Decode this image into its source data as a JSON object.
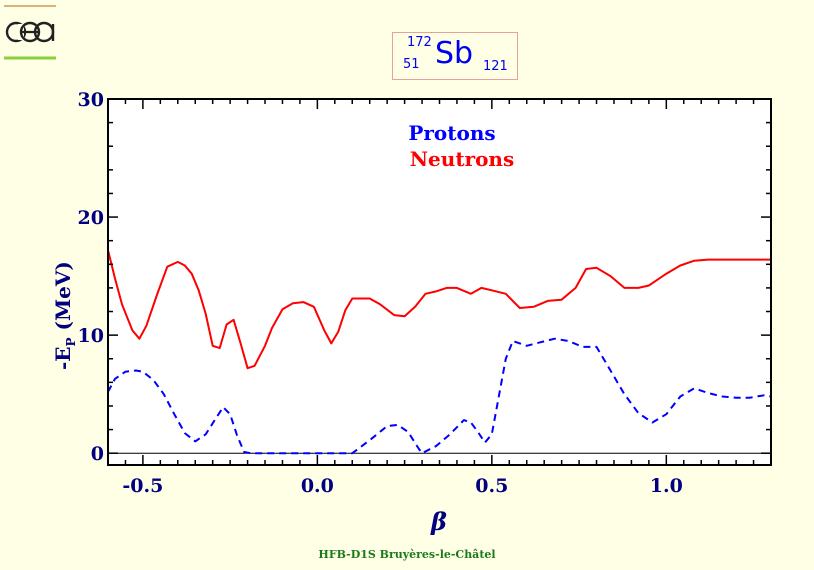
{
  "logo": {
    "text": "cea"
  },
  "nucleus": {
    "mass_number": "172",
    "atomic_number": "51",
    "symbol": "Sb",
    "neutron_number": "121"
  },
  "footer": {
    "text": "HFB-D1S Bruyères-le-Châtel"
  },
  "chart_data": {
    "type": "line",
    "title": "",
    "xlabel": "β",
    "ylabel": "-E",
    "ylabel_sub": "P",
    "ylabel_unit": " (MeV)",
    "xlim": [
      -0.6,
      1.3
    ],
    "ylim": [
      -1,
      30
    ],
    "x_ticks": [
      -0.5,
      0.0,
      0.5,
      1.0
    ],
    "x_tick_labels": [
      "-0.5",
      "0.0",
      "0.5",
      "1.0"
    ],
    "y_ticks": [
      0,
      10,
      20,
      30
    ],
    "y_tick_labels": [
      "0",
      "10",
      "20",
      "30"
    ],
    "legend": [
      "Protons",
      "Neutrons"
    ],
    "series": [
      {
        "name": "Protons",
        "color": "#0000ff",
        "dash": "dashed",
        "x": [
          -0.6,
          -0.58,
          -0.55,
          -0.52,
          -0.5,
          -0.47,
          -0.44,
          -0.41,
          -0.38,
          -0.35,
          -0.32,
          -0.29,
          -0.27,
          -0.25,
          -0.23,
          -0.21,
          -0.19,
          -0.15,
          -0.1,
          -0.05,
          0.0,
          0.05,
          0.1,
          0.15,
          0.2,
          0.23,
          0.26,
          0.29,
          0.3,
          0.34,
          0.38,
          0.42,
          0.44,
          0.46,
          0.48,
          0.5,
          0.52,
          0.54,
          0.56,
          0.6,
          0.64,
          0.68,
          0.72,
          0.76,
          0.8,
          0.84,
          0.88,
          0.92,
          0.96,
          1.0,
          1.04,
          1.08,
          1.12,
          1.16,
          1.2,
          1.24,
          1.28,
          1.3
        ],
        "y": [
          5.2,
          6.3,
          6.9,
          7.0,
          6.9,
          6.2,
          5.0,
          3.3,
          1.7,
          1.0,
          1.6,
          3.0,
          3.9,
          3.3,
          1.5,
          0.1,
          0.0,
          0.0,
          0.0,
          0.0,
          0.0,
          0.0,
          0.0,
          1.1,
          2.3,
          2.4,
          1.8,
          0.4,
          0.0,
          0.6,
          1.6,
          2.8,
          2.6,
          1.8,
          0.9,
          1.6,
          4.8,
          8.0,
          9.5,
          9.1,
          9.4,
          9.7,
          9.5,
          9.0,
          9.0,
          7.0,
          5.0,
          3.4,
          2.6,
          3.3,
          4.8,
          5.5,
          5.1,
          4.8,
          4.7,
          4.7,
          4.9,
          4.8
        ]
      },
      {
        "name": "Neutrons",
        "color": "#ff0000",
        "dash": "solid",
        "x": [
          -0.6,
          -0.58,
          -0.56,
          -0.53,
          -0.51,
          -0.49,
          -0.46,
          -0.43,
          -0.4,
          -0.38,
          -0.36,
          -0.34,
          -0.32,
          -0.3,
          -0.28,
          -0.26,
          -0.24,
          -0.22,
          -0.2,
          -0.18,
          -0.15,
          -0.13,
          -0.1,
          -0.07,
          -0.04,
          -0.01,
          0.02,
          0.04,
          0.06,
          0.08,
          0.1,
          0.12,
          0.15,
          0.18,
          0.22,
          0.25,
          0.28,
          0.31,
          0.34,
          0.37,
          0.4,
          0.44,
          0.47,
          0.5,
          0.54,
          0.58,
          0.62,
          0.66,
          0.7,
          0.74,
          0.77,
          0.8,
          0.84,
          0.88,
          0.92,
          0.95,
          0.97,
          1.0,
          1.04,
          1.08,
          1.12,
          1.16,
          1.2,
          1.24,
          1.28,
          1.3
        ],
        "y": [
          17.2,
          14.8,
          12.6,
          10.4,
          9.7,
          10.8,
          13.4,
          15.8,
          16.2,
          15.9,
          15.2,
          13.8,
          11.8,
          9.1,
          8.9,
          10.9,
          11.3,
          9.3,
          7.2,
          7.4,
          9.1,
          10.6,
          12.2,
          12.7,
          12.8,
          12.4,
          10.4,
          9.3,
          10.3,
          12.1,
          13.1,
          13.1,
          13.1,
          12.6,
          11.7,
          11.6,
          12.4,
          13.5,
          13.7,
          14.0,
          14.0,
          13.5,
          14.0,
          13.8,
          13.5,
          12.3,
          12.4,
          12.9,
          13.0,
          14.0,
          15.6,
          15.7,
          15.0,
          14.0,
          14.0,
          14.2,
          14.6,
          15.2,
          15.9,
          16.3,
          16.4,
          16.4,
          16.4,
          16.4,
          16.4,
          16.4
        ]
      }
    ]
  }
}
